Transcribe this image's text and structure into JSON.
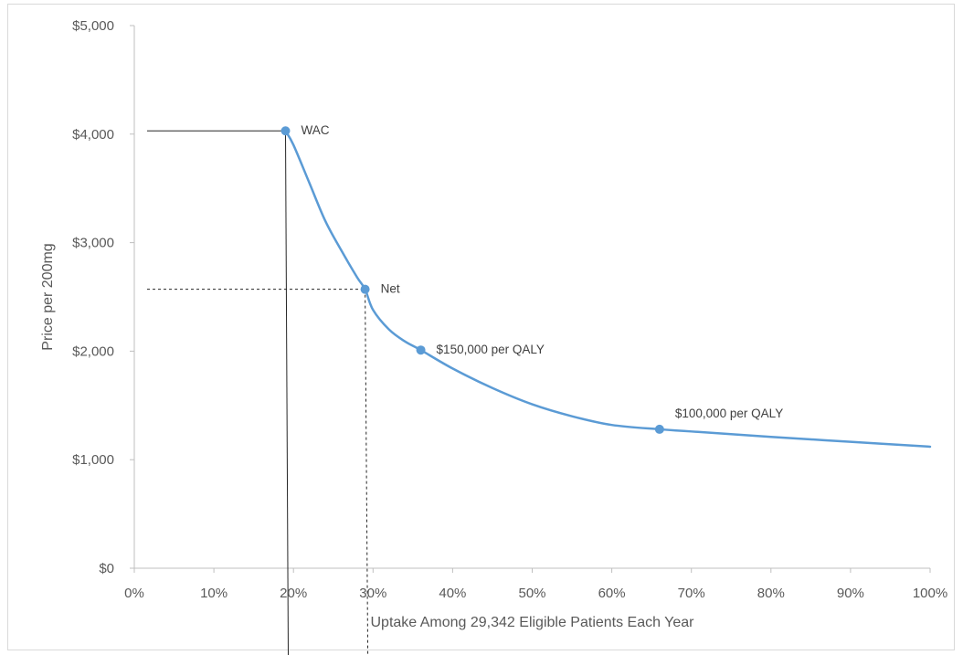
{
  "chart_data": {
    "type": "line",
    "title": "",
    "xlabel": "Uptake Among 29,342 Eligible Patients Each Year",
    "ylabel": "Price per 200mg",
    "xlim": [
      0,
      100
    ],
    "ylim": [
      0,
      5000
    ],
    "x_ticks": [
      0,
      10,
      20,
      30,
      40,
      50,
      60,
      70,
      80,
      90,
      100
    ],
    "x_tick_labels": [
      "0%",
      "10%",
      "20%",
      "30%",
      "40%",
      "50%",
      "60%",
      "70%",
      "80%",
      "90%",
      "100%"
    ],
    "y_ticks": [
      0,
      1000,
      2000,
      3000,
      4000,
      5000
    ],
    "y_tick_labels": [
      "$0",
      "$1,000",
      "$2,000",
      "$3,000",
      "$4,000",
      "$5,000"
    ],
    "grid": false,
    "line_color": "#5b9bd5",
    "series": [
      {
        "x": [
          19,
          20,
          22,
          24,
          26,
          28,
          29,
          30,
          32,
          34,
          36,
          40,
          45,
          50,
          55,
          60,
          66,
          70,
          80,
          90,
          100
        ],
        "values": [
          4030,
          3900,
          3550,
          3200,
          2930,
          2680,
          2570,
          2380,
          2200,
          2090,
          2010,
          1840,
          1660,
          1510,
          1400,
          1320,
          1280,
          1260,
          1210,
          1165,
          1120
        ]
      }
    ],
    "points": [
      {
        "x": 19,
        "y": 4030,
        "label": "WAC"
      },
      {
        "x": 29,
        "y": 2570,
        "label": "Net"
      },
      {
        "x": 36,
        "y": 2010,
        "label": "$150,000 per QALY"
      },
      {
        "x": 66,
        "y": 1280,
        "label": "$100,000 per QALY"
      }
    ],
    "reference_lines": [
      {
        "style": "solid",
        "x": 19,
        "y": 4030
      },
      {
        "style": "dashed",
        "x": 29,
        "y": 2570
      }
    ]
  }
}
